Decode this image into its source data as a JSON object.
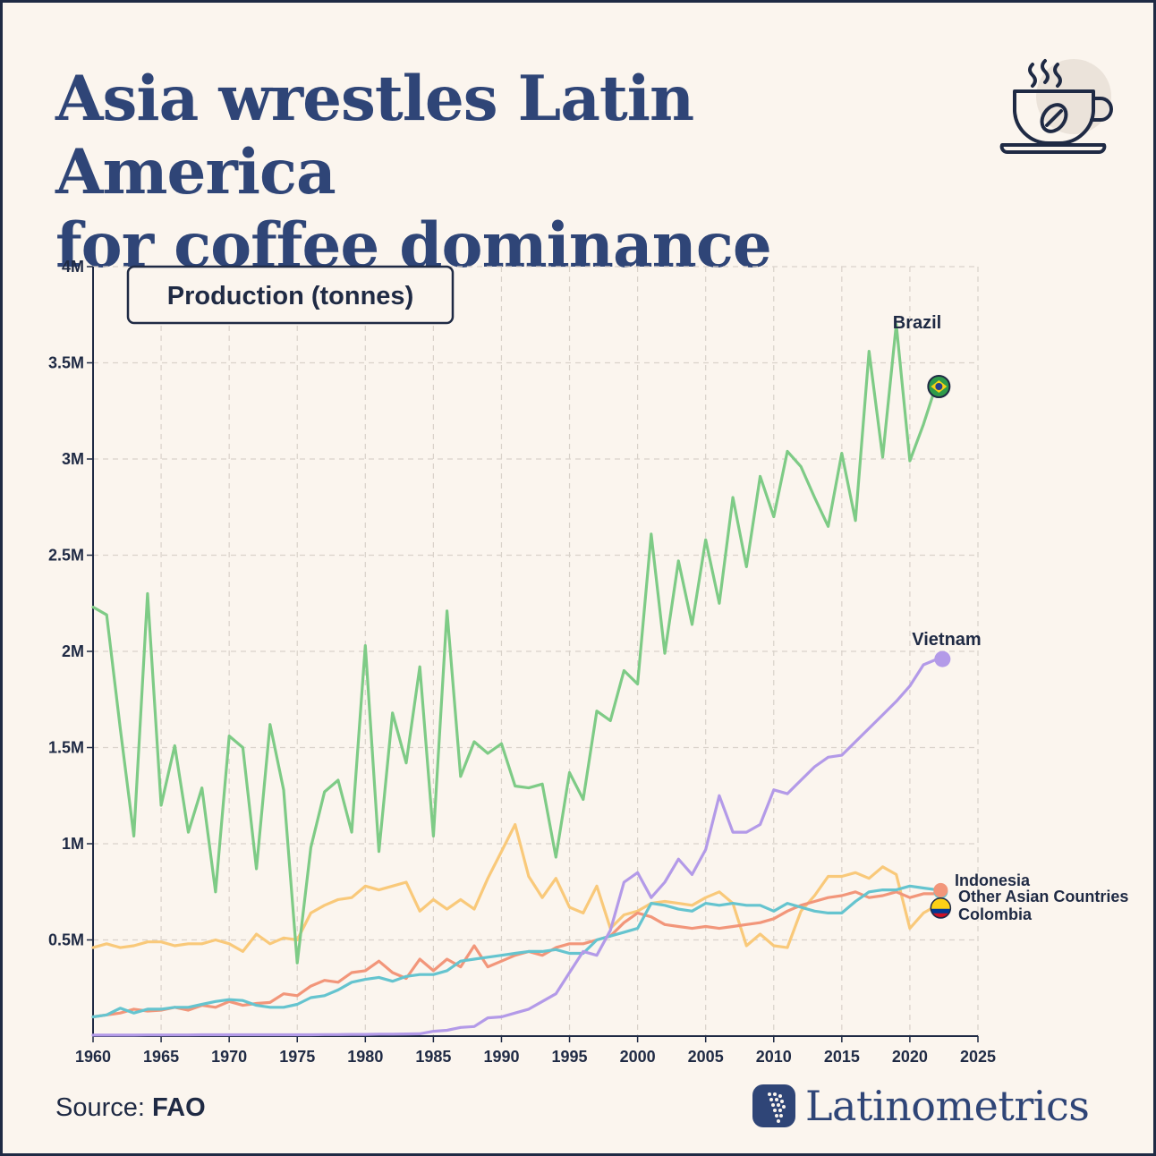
{
  "header": {
    "title_line1": "Asia wrestles Latin America",
    "title_line2": "for coffee dominance",
    "icon": "coffee-cup-icon"
  },
  "footer": {
    "source_label": "Source:",
    "source_name": "FAO",
    "brand_name": "Latinometrics",
    "brand_icon": "latin-america-map-icon"
  },
  "chart_data": {
    "type": "line",
    "title": "Production (tonnes)",
    "xlim": [
      1960,
      2025
    ],
    "ylim": [
      0,
      4000000
    ],
    "x_ticks": [
      1960,
      1965,
      1970,
      1975,
      1980,
      1985,
      1990,
      1995,
      2000,
      2005,
      2010,
      2015,
      2020,
      2025
    ],
    "x_tick_labels": [
      "1960",
      "1965",
      "1970",
      "1975",
      "1980",
      "1985",
      "1990",
      "1995",
      "2000",
      "2005",
      "2010",
      "2015",
      "2020",
      "2025"
    ],
    "y_ticks": [
      500000,
      1000000,
      1500000,
      2000000,
      2500000,
      3000000,
      3500000,
      4000000
    ],
    "y_tick_labels": [
      "0.5M",
      "1M",
      "1.5M",
      "2M",
      "2.5M",
      "3M",
      "3.5M",
      "4M"
    ],
    "grid": true,
    "x": [
      1960,
      1961,
      1962,
      1963,
      1964,
      1965,
      1966,
      1967,
      1968,
      1969,
      1970,
      1971,
      1972,
      1973,
      1974,
      1975,
      1976,
      1977,
      1978,
      1979,
      1980,
      1981,
      1982,
      1983,
      1984,
      1985,
      1986,
      1987,
      1988,
      1989,
      1990,
      1991,
      1992,
      1993,
      1994,
      1995,
      1996,
      1997,
      1998,
      1999,
      2000,
      2001,
      2002,
      2003,
      2004,
      2005,
      2006,
      2007,
      2008,
      2009,
      2010,
      2011,
      2012,
      2013,
      2014,
      2015,
      2016,
      2017,
      2018,
      2019,
      2020,
      2021,
      2022
    ],
    "series": [
      {
        "name": "Brazil",
        "color": "#7ecb86",
        "end_marker": "brazil-flag-icon",
        "values": [
          2230000,
          2190000,
          1600000,
          1040000,
          2300000,
          1200000,
          1510000,
          1060000,
          1290000,
          750000,
          1560000,
          1500000,
          870000,
          1620000,
          1280000,
          380000,
          980000,
          1270000,
          1330000,
          1060000,
          2030000,
          960000,
          1680000,
          1420000,
          1920000,
          1040000,
          2210000,
          1350000,
          1530000,
          1470000,
          1520000,
          1300000,
          1290000,
          1310000,
          930000,
          1370000,
          1230000,
          1690000,
          1640000,
          1900000,
          1830000,
          2610000,
          1990000,
          2470000,
          2140000,
          2580000,
          2250000,
          2800000,
          2440000,
          2910000,
          2700000,
          3040000,
          2960000,
          2800000,
          2650000,
          3030000,
          2680000,
          3560000,
          3010000,
          3700000,
          2990000,
          3180000,
          3400000
        ]
      },
      {
        "name": "Vietnam",
        "color": "#b39ae8",
        "end_marker": "dot",
        "values": [
          5000,
          5000,
          5000,
          5000,
          6000,
          6000,
          6000,
          6000,
          7000,
          7000,
          7000,
          7000,
          7000,
          7000,
          7000,
          7000,
          7000,
          8000,
          8000,
          9000,
          9000,
          10000,
          10000,
          11000,
          12000,
          25000,
          30000,
          45000,
          50000,
          95000,
          100000,
          120000,
          140000,
          180000,
          220000,
          330000,
          440000,
          420000,
          550000,
          800000,
          850000,
          720000,
          800000,
          920000,
          840000,
          970000,
          1250000,
          1060000,
          1060000,
          1100000,
          1280000,
          1260000,
          1330000,
          1400000,
          1450000,
          1460000,
          1530000,
          1600000,
          1670000,
          1740000,
          1820000,
          1930000,
          1960000
        ]
      },
      {
        "name": "Indonesia",
        "color": "#65c4cf",
        "end_marker": "dot",
        "values": [
          100000,
          110000,
          145000,
          120000,
          140000,
          140000,
          150000,
          150000,
          165000,
          180000,
          190000,
          185000,
          160000,
          150000,
          150000,
          165000,
          200000,
          210000,
          240000,
          280000,
          295000,
          305000,
          285000,
          310000,
          320000,
          320000,
          340000,
          390000,
          400000,
          410000,
          420000,
          430000,
          440000,
          440000,
          450000,
          430000,
          430000,
          500000,
          520000,
          540000,
          560000,
          690000,
          680000,
          660000,
          650000,
          690000,
          680000,
          690000,
          680000,
          680000,
          650000,
          690000,
          670000,
          650000,
          640000,
          640000,
          700000,
          750000,
          760000,
          760000,
          780000,
          770000,
          760000
        ]
      },
      {
        "name": "Other Asian Countries",
        "color": "#f2967a",
        "end_marker": "dot",
        "values": [
          100000,
          110000,
          120000,
          140000,
          130000,
          135000,
          150000,
          135000,
          160000,
          150000,
          180000,
          160000,
          170000,
          175000,
          220000,
          210000,
          260000,
          290000,
          280000,
          330000,
          340000,
          390000,
          330000,
          300000,
          400000,
          340000,
          400000,
          360000,
          470000,
          360000,
          390000,
          420000,
          440000,
          420000,
          460000,
          480000,
          480000,
          500000,
          520000,
          590000,
          640000,
          620000,
          580000,
          570000,
          560000,
          570000,
          560000,
          570000,
          580000,
          590000,
          610000,
          650000,
          680000,
          700000,
          720000,
          730000,
          750000,
          720000,
          730000,
          750000,
          720000,
          740000,
          740000
        ]
      },
      {
        "name": "Colombia",
        "color": "#f9c97a",
        "end_marker": "colombia-flag-icon",
        "values": [
          460000,
          480000,
          460000,
          470000,
          490000,
          490000,
          470000,
          480000,
          480000,
          500000,
          480000,
          440000,
          530000,
          480000,
          510000,
          500000,
          640000,
          680000,
          710000,
          720000,
          780000,
          760000,
          780000,
          800000,
          650000,
          710000,
          660000,
          710000,
          660000,
          820000,
          960000,
          1100000,
          830000,
          720000,
          820000,
          670000,
          640000,
          780000,
          560000,
          630000,
          650000,
          690000,
          700000,
          690000,
          680000,
          720000,
          750000,
          690000,
          470000,
          530000,
          470000,
          460000,
          650000,
          730000,
          830000,
          830000,
          850000,
          820000,
          880000,
          840000,
          560000,
          640000,
          680000
        ]
      }
    ],
    "labels": {
      "brazil": "Brazil",
      "vietnam": "Vietnam",
      "indonesia": "Indonesia",
      "other_asian": "Other Asian Countries",
      "colombia": "Colombia"
    }
  }
}
